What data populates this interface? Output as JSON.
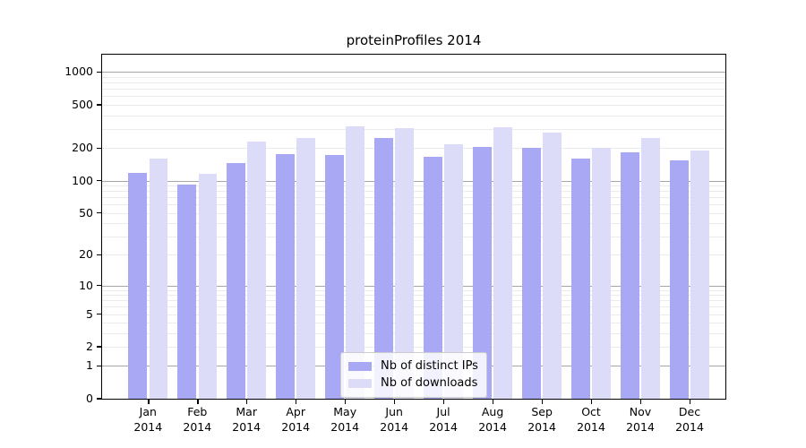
{
  "chart_data": {
    "type": "bar",
    "title": "proteinProfiles 2014",
    "categories": [
      "Jan",
      "Feb",
      "Mar",
      "Apr",
      "May",
      "Jun",
      "Jul",
      "Aug",
      "Sep",
      "Oct",
      "Nov",
      "Dec"
    ],
    "year_label": "2014",
    "series": [
      {
        "name": "Nb of distinct IPs",
        "color": "#a8a8f4",
        "values": [
          118,
          92,
          145,
          177,
          173,
          246,
          166,
          206,
          202,
          160,
          183,
          154
        ]
      },
      {
        "name": "Nb of downloads",
        "color": "#dcdcf8",
        "values": [
          160,
          116,
          229,
          247,
          317,
          305,
          216,
          309,
          279,
          200,
          246,
          191
        ]
      }
    ],
    "y_axis": {
      "scale": "log10(value+1)",
      "tick_labels": [
        0,
        1,
        2,
        5,
        10,
        20,
        50,
        100,
        200,
        500,
        1000
      ],
      "range": [
        0,
        1450
      ]
    },
    "grid": {
      "major_values": [
        1,
        10,
        100,
        1000
      ],
      "major_color": "#a6a6a6",
      "minor_color": "#ebebeb"
    },
    "legend": {
      "position": "lower-center"
    }
  }
}
